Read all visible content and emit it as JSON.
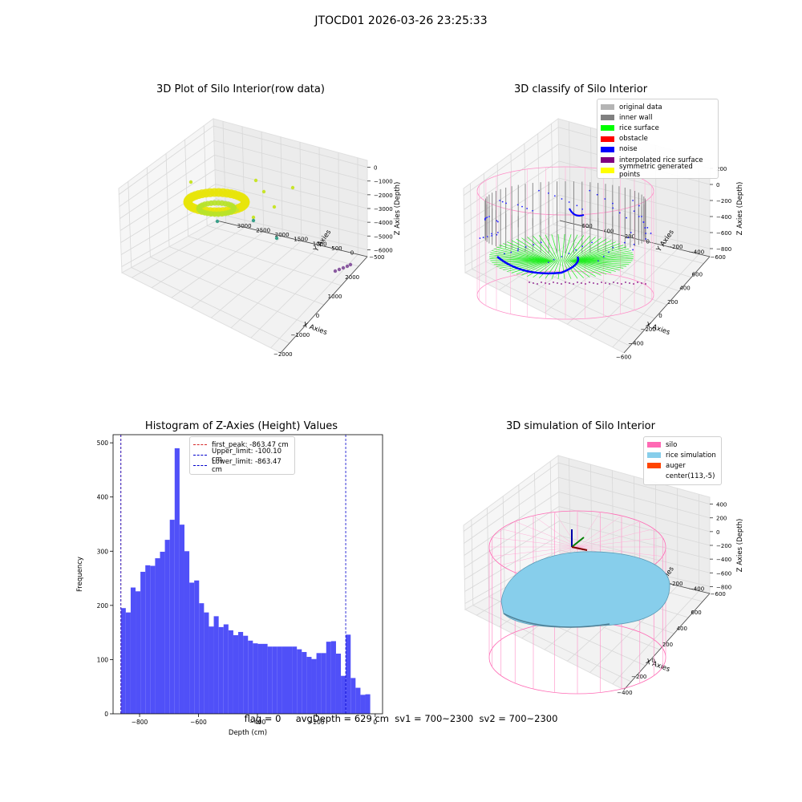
{
  "figure_title": "JTOCD01 2026-03-26 23:25:33",
  "status": {
    "flag": "flag = 0",
    "avg_depth": "avgDepth = 629 cm",
    "sv1": "sv1 = 700~2300",
    "sv2": "sv2 = 700~2300"
  },
  "colors": {
    "histogram_bar": "#5050f8",
    "peak_line": "#d62728",
    "limit_line": "#0000cc",
    "original_data": "#b4b4b4",
    "inner_wall": "#808080",
    "rice_surface": "#00ff00",
    "obstacle": "#ff0000",
    "noise": "#0000ff",
    "interpolated_rice_surface": "#800080",
    "symmetric_generated_points": "#ffff00",
    "silo": "#ff69b4",
    "rice_simulation": "#87ceeb",
    "auger": "#ff4500"
  },
  "chart_data": [
    {
      "type": "scatter",
      "title": "3D Plot of Silo Interior(row data)",
      "xlabel": "X Axies",
      "ylabel": "Y Axies",
      "zlabel": "Z Axies (Depth)",
      "x_ticks": [
        "−2000",
        "−1000",
        "0",
        "1000",
        "2000"
      ],
      "y_ticks": [
        "−500",
        "0",
        "500",
        "1000",
        "1500",
        "2000",
        "2500",
        "3000"
      ],
      "z_ticks": [
        "0",
        "−1000",
        "−2000",
        "−3000",
        "−4000",
        "−5000",
        "−6000"
      ],
      "xlim": [
        -2300,
        2300
      ],
      "ylim": [
        -600,
        3300
      ],
      "zlim": [
        -6500,
        300
      ]
    },
    {
      "type": "scatter",
      "title": "3D classify of Silo Interior",
      "xlabel": "X Axies",
      "ylabel": "Y Axies",
      "zlabel": "Z Axies (Depth)",
      "x_ticks": [
        "−600",
        "−400",
        "−200",
        "0",
        "200",
        "400",
        "600"
      ],
      "y_ticks": [
        "−600",
        "−400",
        "−200",
        "0",
        "200",
        "400",
        "600"
      ],
      "z_ticks": [
        "200",
        "0",
        "−200",
        "−400",
        "−600",
        "−800"
      ],
      "xlim": [
        -650,
        650
      ],
      "ylim": [
        -650,
        650
      ],
      "zlim": [
        -900,
        300
      ],
      "legend": [
        "original data",
        "inner wall",
        "rice surface",
        "obstacle",
        "noise",
        "interpolated rice surface",
        "symmetric generated points"
      ],
      "legend_position": "upper right"
    },
    {
      "type": "bar",
      "title": "Histogram of Z-Axies (Height) Values",
      "xlabel": "Depth (cm)",
      "ylabel": "Frequency",
      "x_ticks": [
        -800,
        -600,
        -400,
        -200,
        0
      ],
      "y_ticks": [
        0,
        100,
        200,
        300,
        400,
        500
      ],
      "xlim": [
        -890,
        25
      ],
      "ylim": [
        0,
        515
      ],
      "bin_start": -863.47,
      "bin_width": 16.6,
      "values": [
        195,
        187,
        233,
        226,
        262,
        274,
        273,
        287,
        299,
        321,
        358,
        490,
        349,
        300,
        242,
        246,
        204,
        187,
        161,
        180,
        160,
        165,
        154,
        145,
        151,
        144,
        135,
        130,
        129,
        129,
        124,
        124,
        124,
        124,
        124,
        124,
        119,
        114,
        105,
        101,
        112,
        112,
        133,
        134,
        111,
        70,
        146,
        66,
        48,
        35,
        36
      ],
      "lines": [
        {
          "label": "first_peak: -863.47 cm",
          "x": -863.47,
          "color": "#d62728"
        },
        {
          "label": "Upper_limit: -100.10 cm",
          "x": -100.1,
          "color": "#0000cc"
        },
        {
          "label": "Lower_limit: -863.47 cm",
          "x": -863.47,
          "color": "#0000cc"
        }
      ],
      "legend_position": "upper center"
    },
    {
      "type": "scatter",
      "title": "3D simulation of Silo Interior",
      "xlabel": "X Axies",
      "ylabel": "Y Axies",
      "zlabel": "Z Axies (Depth)",
      "x_ticks": [
        "−400",
        "−200",
        "0",
        "200",
        "400",
        "600"
      ],
      "y_ticks": [
        "−600",
        "−400",
        "−200",
        "0",
        "200",
        "400",
        "600"
      ],
      "z_ticks": [
        "400",
        "200",
        "0",
        "−200",
        "−400",
        "−600",
        "−800"
      ],
      "legend": [
        "silo",
        "rice simulation",
        "auger",
        "center(113,-5)"
      ],
      "legend_position": "upper right"
    }
  ]
}
